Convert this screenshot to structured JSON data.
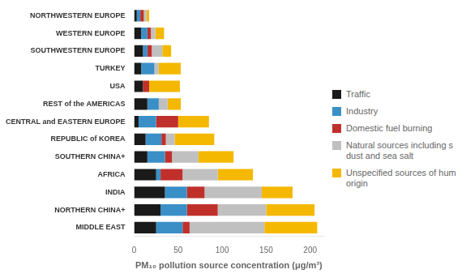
{
  "chart_data": {
    "type": "bar",
    "orientation": "horizontal",
    "stacked": true,
    "categories": [
      "NORTHWESTERN EUROPE",
      "WESTERN EUROPE",
      "SOUTHWESTERN EUROPE",
      "TURKEY",
      "USA",
      "REST of the AMERICAS",
      "CENTRAL and EASTERN EUROPE",
      "REPUBLIC of KOREA",
      "SOUTHERN CHINA+",
      "AFRICA",
      "INDIA",
      "NORTHERN CHINA+",
      "MIDDLE EAST"
    ],
    "series": [
      {
        "name": "Traffic",
        "color": "#1a1a1a",
        "values": [
          3,
          8,
          10,
          8,
          10,
          15,
          5,
          13,
          15,
          25,
          35,
          30,
          25
        ]
      },
      {
        "name": "Industry",
        "color": "#3a8fc7",
        "values": [
          4,
          7,
          5,
          15,
          0,
          13,
          20,
          18,
          20,
          5,
          25,
          30,
          30
        ]
      },
      {
        "name": "Domestic fuel burning",
        "color": "#c0302b",
        "values": [
          4,
          4,
          5,
          0,
          7,
          0,
          25,
          5,
          8,
          25,
          20,
          35,
          8
        ]
      },
      {
        "name": "Natural sources including s\ndust and sea salt",
        "color": "#c0c0c0",
        "values": [
          3,
          5,
          12,
          5,
          0,
          10,
          0,
          10,
          30,
          40,
          65,
          55,
          85
        ]
      },
      {
        "name": "Unspecified sources of hum\norigin",
        "color": "#f5b800",
        "values": [
          3,
          10,
          10,
          25,
          35,
          15,
          35,
          45,
          40,
          40,
          35,
          55,
          60
        ]
      }
    ],
    "xlabel": "PM₁₀ pollution source concentration (μg/m³)",
    "xlim": [
      0,
      215
    ],
    "xticks": [
      0,
      50,
      100,
      150,
      200
    ],
    "grid": false,
    "legend": "right"
  }
}
